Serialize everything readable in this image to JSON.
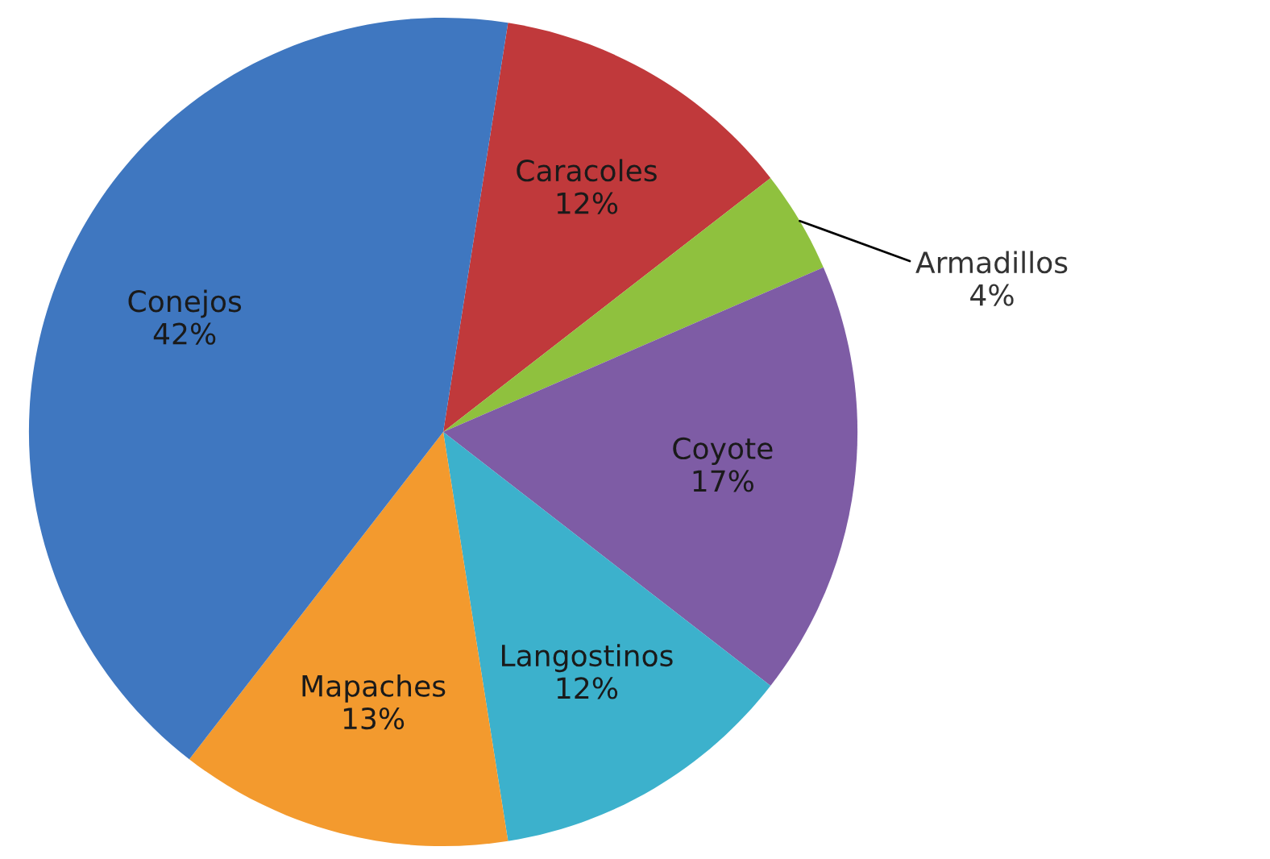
{
  "chart_data": {
    "type": "pie",
    "categories": [
      "Caracoles",
      "Armadillos",
      "Coyote",
      "Langostinos",
      "Mapaches",
      "Conejos"
    ],
    "values": [
      12,
      4,
      17,
      12,
      13,
      42
    ],
    "value_labels": [
      "12%",
      "4%",
      "17%",
      "12%",
      "13%",
      "42%"
    ],
    "colors": [
      "#c0393b",
      "#8fc13e",
      "#7e5ca5",
      "#3cb1cc",
      "#f39a2e",
      "#3f77c0"
    ],
    "legend": false
  }
}
